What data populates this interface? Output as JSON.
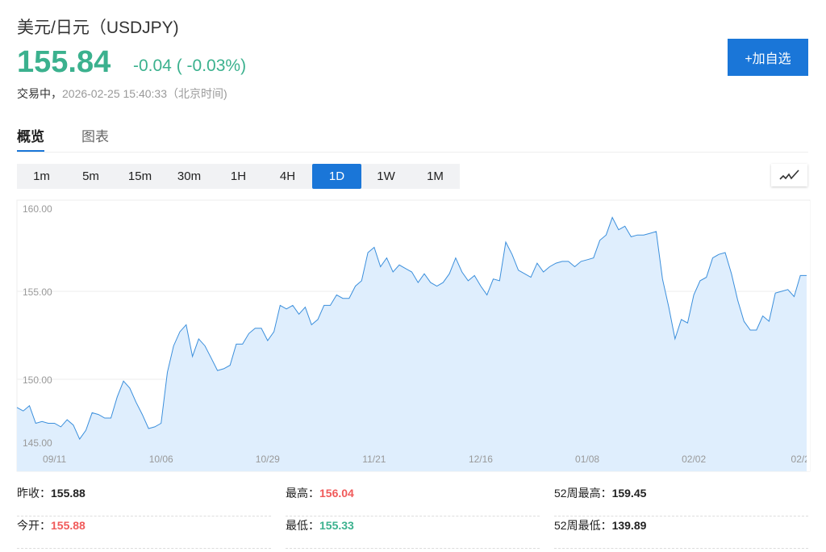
{
  "header": {
    "title": "美元/日元（USDJPY)",
    "price": "155.84",
    "change": "-0.04 ( -0.03%)",
    "status_label": "交易中，",
    "timestamp": "2026-02-25 15:40:33（北京时间)",
    "add_watchlist": "+加自选"
  },
  "tabs": [
    {
      "label": "概览",
      "active": true
    },
    {
      "label": "图表",
      "active": false
    }
  ],
  "periods": [
    {
      "label": "1m"
    },
    {
      "label": "5m"
    },
    {
      "label": "15m"
    },
    {
      "label": "30m"
    },
    {
      "label": "1H"
    },
    {
      "label": "4H"
    },
    {
      "label": "1D",
      "active": true
    },
    {
      "label": "1W"
    },
    {
      "label": "1M"
    }
  ],
  "chart_type_icon": "line-chart-icon",
  "colors": {
    "accent": "#1a76d8",
    "up": "#f05a5a",
    "down": "#3bb18e",
    "line": "#3b8fdc",
    "fill": "#dfeefd"
  },
  "chart_data": {
    "type": "area",
    "yticks": [
      "160.00",
      "155.00",
      "150.00",
      "145.00"
    ],
    "ytick_values": [
      160,
      155,
      150,
      145
    ],
    "xticks": [
      {
        "label": "09/11",
        "index": 6
      },
      {
        "label": "10/06",
        "index": 23
      },
      {
        "label": "10/29",
        "index": 40
      },
      {
        "label": "11/21",
        "index": 57
      },
      {
        "label": "12/16",
        "index": 74
      },
      {
        "label": "01/08",
        "index": 91
      },
      {
        "label": "02/02",
        "index": 108
      },
      {
        "label": "02/2",
        "index": 125
      }
    ],
    "grid": true,
    "ylim": [
      144.8,
      160.6
    ],
    "values": [
      148.4,
      148.2,
      148.5,
      147.5,
      147.6,
      147.5,
      147.5,
      147.3,
      147.7,
      147.4,
      146.6,
      147.1,
      148.1,
      148.0,
      147.8,
      147.8,
      149.0,
      149.9,
      149.5,
      148.7,
      148.0,
      147.2,
      147.3,
      147.5,
      150.4,
      151.9,
      152.7,
      153.1,
      151.3,
      152.3,
      151.9,
      151.2,
      150.5,
      150.6,
      150.8,
      152.0,
      152.0,
      152.6,
      152.9,
      152.9,
      152.2,
      152.7,
      154.2,
      154.0,
      154.2,
      153.7,
      154.1,
      153.1,
      153.4,
      154.2,
      154.2,
      154.8,
      154.6,
      154.6,
      155.3,
      155.6,
      157.2,
      157.5,
      156.4,
      156.9,
      156.1,
      156.5,
      156.3,
      156.1,
      155.5,
      156.0,
      155.5,
      155.3,
      155.5,
      156.0,
      156.9,
      156.1,
      155.6,
      155.9,
      155.3,
      154.8,
      155.7,
      155.6,
      157.8,
      157.1,
      156.2,
      156.0,
      155.8,
      156.6,
      156.1,
      156.4,
      156.6,
      156.7,
      156.7,
      156.4,
      156.7,
      156.8,
      156.9,
      157.9,
      158.2,
      159.2,
      158.5,
      158.7,
      158.1,
      158.2,
      158.2,
      158.3,
      158.4,
      155.7,
      154.1,
      152.3,
      153.4,
      153.2,
      154.8,
      155.6,
      155.8,
      156.9,
      157.1,
      157.2,
      156.0,
      154.5,
      153.3,
      152.8,
      152.8,
      153.6,
      153.3,
      154.9,
      155.0,
      155.1,
      154.7,
      155.9,
      155.9
    ]
  },
  "stats": [
    {
      "label": "昨收：",
      "value": "155.88",
      "color": "#222"
    },
    {
      "label": "最高：",
      "value": "156.04",
      "color": "#f05a5a"
    },
    {
      "label": "52周最高：",
      "value": "159.45",
      "color": "#222"
    },
    {
      "label": "今开：",
      "value": "155.88",
      "color": "#f05a5a"
    },
    {
      "label": "最低：",
      "value": "155.33",
      "color": "#3bb18e"
    },
    {
      "label": "52周最低：",
      "value": "139.89",
      "color": "#222"
    }
  ]
}
